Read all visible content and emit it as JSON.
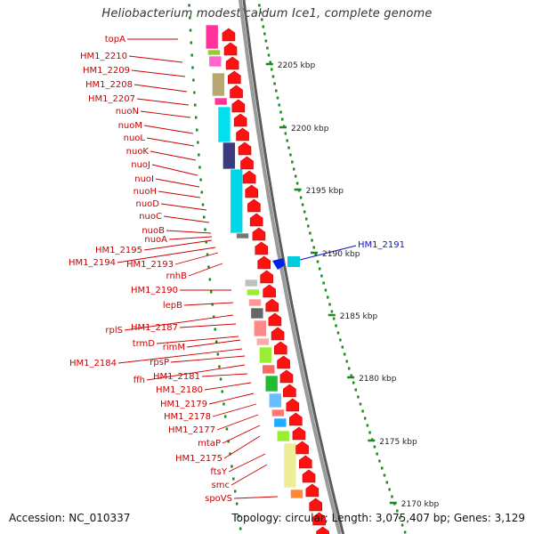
{
  "title": "Heliobacterium modesticaldum Ice1, complete genome",
  "footer": {
    "accession": "Accession: NC_010337",
    "info": "Topology: circular; Length: 3,075,407 bp; Genes: 3,129"
  },
  "scale_labels": [
    "2205 kbp",
    "2200 kbp",
    "2195 kbp",
    "2190 kbp",
    "2185 kbp",
    "2180 kbp",
    "2175 kbp",
    "2170 kbp"
  ],
  "gene_labels": [
    "topA",
    "HM1_2210",
    "HM1_2209",
    "HM1_2208",
    "HM1_2207",
    "nuoN",
    "nuoM",
    "nuoL",
    "nuoK",
    "nuoJ",
    "nuoI",
    "nuoH",
    "nuoD",
    "nuoC",
    "nuoB",
    "nuoA",
    "HM1_2195",
    "HM1_2194",
    "HM1_2193",
    "rnhB",
    "HM1_2190",
    "lepB",
    "rplS",
    "HM1_2187",
    "trmD",
    "rimM",
    "HM1_2184",
    "rpsP",
    "ffh",
    "HM1_2181",
    "HM1_2180",
    "HM1_2179",
    "HM1_2178",
    "HM1_2177",
    "mtaP",
    "HM1_2175",
    "ftsY",
    "smc",
    "spoVS"
  ],
  "right_label": "HM1_2191",
  "colors": {
    "label_red": "#cc0000",
    "label_blue": "#1010cc",
    "arrow_red": "#ff1111",
    "tick_green": "#1a8a1a",
    "backbone_gray": "#777777"
  }
}
